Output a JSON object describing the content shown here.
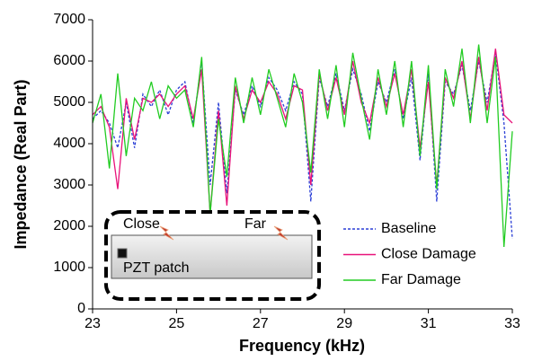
{
  "chart_data": {
    "type": "line",
    "xlabel": "Frequency (kHz)",
    "ylabel": "Impedance (Real Part)",
    "x": [
      23,
      23.2,
      23.4,
      23.6,
      23.8,
      24,
      24.2,
      24.4,
      24.6,
      24.8,
      25,
      25.2,
      25.4,
      25.6,
      25.8,
      26,
      26.2,
      26.4,
      26.6,
      26.8,
      27,
      27.2,
      27.4,
      27.6,
      27.8,
      28,
      28.2,
      28.4,
      28.6,
      28.8,
      29,
      29.2,
      29.4,
      29.6,
      29.8,
      30,
      30.2,
      30.4,
      30.6,
      30.8,
      31,
      31.2,
      31.4,
      31.6,
      31.8,
      32,
      32.2,
      32.4,
      32.6,
      32.8,
      33
    ],
    "series": [
      {
        "name": "Baseline",
        "color": "#2b3fd6",
        "dashed": true,
        "values": [
          4600,
          4800,
          4500,
          3900,
          5000,
          3900,
          5200,
          4900,
          5300,
          4700,
          5300,
          5500,
          4500,
          6000,
          3000,
          5000,
          2800,
          5300,
          4700,
          5400,
          4900,
          5600,
          5300,
          4800,
          5500,
          5200,
          2600,
          5600,
          4900,
          5700,
          4800,
          5800,
          5200,
          4300,
          5500,
          5000,
          5800,
          4600,
          5600,
          3600,
          5700,
          2600,
          5500,
          5200,
          5900,
          4800,
          6000,
          5000,
          6200,
          4500,
          1700
        ]
      },
      {
        "name": "Close Damage",
        "color": "#e8137a",
        "dashed": false,
        "values": [
          4700,
          4900,
          4400,
          2900,
          5100,
          4100,
          5100,
          5000,
          5200,
          4900,
          5200,
          5400,
          4600,
          5800,
          2300,
          4800,
          2500,
          5400,
          4600,
          5300,
          5000,
          5500,
          5200,
          4600,
          5400,
          5300,
          3000,
          5700,
          4800,
          5600,
          4700,
          6000,
          5000,
          4500,
          5600,
          4900,
          5700,
          4700,
          5800,
          3900,
          5500,
          3000,
          5600,
          5100,
          6000,
          4600,
          6100,
          4800,
          6300,
          4700,
          4500
        ]
      },
      {
        "name": "Far Damage",
        "color": "#22cc22",
        "dashed": false,
        "values": [
          4500,
          5200,
          3400,
          5700,
          3700,
          5100,
          4800,
          5500,
          4600,
          5400,
          5100,
          5300,
          4400,
          6100,
          2300,
          4600,
          3200,
          5600,
          4500,
          5600,
          4700,
          5800,
          5100,
          4400,
          5700,
          5000,
          3300,
          5800,
          4600,
          5900,
          4400,
          6200,
          5100,
          4100,
          5800,
          4700,
          6000,
          4400,
          6000,
          3700,
          5900,
          2900,
          5800,
          4900,
          6300,
          4500,
          6400,
          4500,
          6100,
          1500,
          4300
        ]
      }
    ],
    "xlim": [
      23,
      33
    ],
    "xticks": [
      23,
      25,
      27,
      29,
      31,
      33
    ],
    "ylim": [
      0,
      7000
    ],
    "yticks": [
      0,
      1000,
      2000,
      3000,
      4000,
      5000,
      6000,
      7000
    ],
    "grid": false,
    "legend": "lower right",
    "inset_labels": [
      "Close",
      "Far",
      "PZT patch"
    ]
  }
}
